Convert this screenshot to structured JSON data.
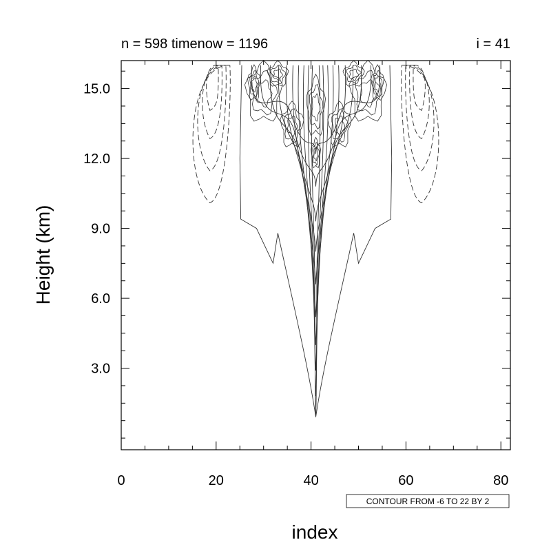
{
  "chart_data": {
    "type": "contour",
    "title_left": "n = 598 timenow = 1196",
    "title_right": "i = 41",
    "xlabel": "index",
    "ylabel": "Height (km)",
    "xlim": [
      0,
      82
    ],
    "ylim": [
      -0.5,
      16.2
    ],
    "x_ticks": [
      0,
      20,
      40,
      60,
      80
    ],
    "x_tick_labels": [
      "0",
      "20",
      "40",
      "60",
      "80"
    ],
    "y_ticks": [
      3,
      6,
      9,
      12,
      15
    ],
    "y_tick_labels": [
      "3.0",
      "6.0",
      "9.0",
      "12.0",
      "15.0"
    ],
    "contour_info": "CONTOUR FROM -6 TO 22 BY 2",
    "contour_levels": {
      "min": -6,
      "max": 22,
      "step": 2
    },
    "negative_contours_dashed": true,
    "legend": "none",
    "grid": false,
    "colors": {
      "line": "#333333",
      "axis": "#000000",
      "background": "#ffffff"
    }
  }
}
